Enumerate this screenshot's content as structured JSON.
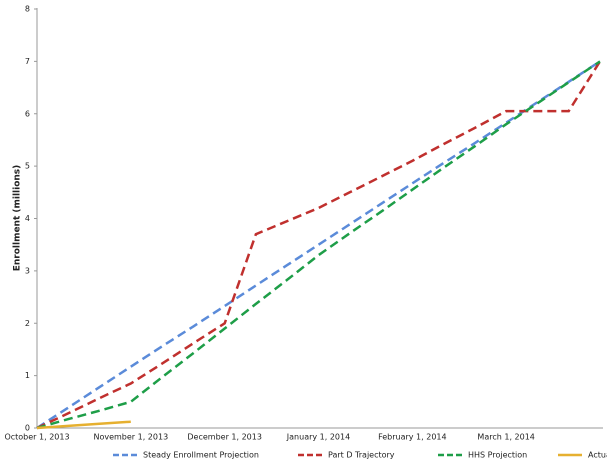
{
  "chart_data": {
    "type": "line",
    "y_label": "Enrollment (millions)",
    "categories": [
      "October 1, 2013",
      null,
      null,
      "November 1, 2013",
      null,
      null,
      "December 1, 2013",
      null,
      null,
      "January 1, 2014",
      null,
      null,
      "February 1, 2014",
      null,
      null,
      "March 1, 2014",
      null,
      null,
      null
    ],
    "series": [
      {
        "name": "Steady Enrollment Projection",
        "color": "#5b8bd9",
        "dashed": true,
        "values": [
          0,
          0.39,
          0.78,
          1.17,
          1.56,
          1.94,
          2.33,
          2.72,
          3.11,
          3.5,
          3.89,
          4.28,
          4.67,
          5.06,
          5.44,
          5.83,
          6.22,
          6.61,
          7
        ]
      },
      {
        "name": "Part D Trajectory",
        "color": "#c0302e",
        "dashed": true,
        "values": [
          0,
          0.28,
          0.57,
          0.85,
          1.23,
          1.62,
          2.0,
          3.7,
          3.95,
          4.2,
          4.5,
          4.8,
          5.1,
          5.42,
          5.73,
          6.05,
          6.05,
          6.05,
          7.0
        ]
      },
      {
        "name": "HHS Projection",
        "color": "#1e9e48",
        "dashed": true,
        "values": [
          0,
          0.17,
          0.33,
          0.5,
          0.97,
          1.43,
          1.9,
          2.37,
          2.83,
          3.3,
          3.72,
          4.13,
          4.55,
          4.97,
          5.38,
          5.8,
          6.2,
          6.6,
          7
        ]
      },
      {
        "name": "Actual",
        "color": "#e6b030",
        "dashed": false,
        "values": [
          0,
          0.04,
          0.08,
          0.12,
          null,
          null,
          null,
          null,
          null,
          null,
          null,
          null,
          null,
          null,
          null,
          null,
          null,
          null,
          null
        ]
      }
    ],
    "ylim": [
      0,
      8
    ],
    "yticks": [
      0,
      1,
      2,
      3,
      4,
      5,
      6,
      7,
      8
    ],
    "grid": false
  }
}
